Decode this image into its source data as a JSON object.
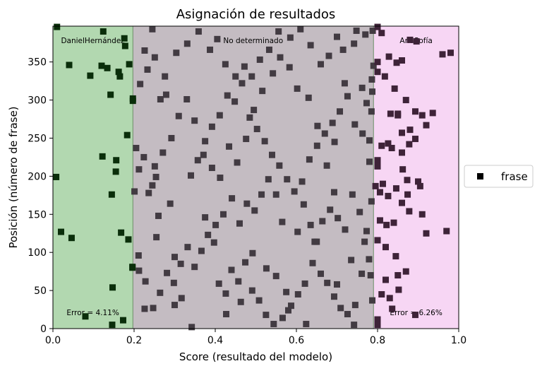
{
  "chart_data": {
    "type": "scatter",
    "title": "Asignación de resultados",
    "xlabel": "Score (resultado del modelo)",
    "ylabel": "Posición (número de frase)",
    "xlim": [
      0.0,
      1.0
    ],
    "ylim": [
      0,
      397
    ],
    "x_ticks": [
      "0.0",
      "0.2",
      "0.4",
      "0.6",
      "0.8",
      "1.0"
    ],
    "x_tick_values": [
      0.0,
      0.2,
      0.4,
      0.6,
      0.8,
      1.0
    ],
    "y_ticks": [
      "0",
      "50",
      "100",
      "150",
      "200",
      "250",
      "300",
      "350"
    ],
    "y_tick_values": [
      0,
      50,
      100,
      150,
      200,
      250,
      300,
      350
    ],
    "grid": false,
    "legend": {
      "placement": "right-outside",
      "label": "frase",
      "marker": "square",
      "color": "#000000"
    },
    "regions": [
      {
        "label": "DanielHernández",
        "x_start": 0.0,
        "x_end": 0.197,
        "color": "#b2d8b0",
        "error_label": "Error = 4.11%"
      },
      {
        "label": "No determinado",
        "x_start": 0.197,
        "x_end": 0.79,
        "color": "#c4bcc2",
        "error_label": ""
      },
      {
        "label": "AnaSofía",
        "x_start": 0.79,
        "x_end": 1.0,
        "color": "#f7d6f4",
        "error_label": "Error = 6.26%"
      }
    ],
    "marker_colors": {
      "DanielHernández": "#0a2e0a",
      "No determinado": "#423b42",
      "AnaSofía": "#3e2338"
    },
    "points": [
      [
        0.01,
        396
      ],
      [
        0.008,
        199
      ],
      [
        0.02,
        127
      ],
      [
        0.046,
        119
      ],
      [
        0.08,
        16
      ],
      [
        0.146,
        5
      ],
      [
        0.147,
        54
      ],
      [
        0.173,
        11
      ],
      [
        0.168,
        126
      ],
      [
        0.186,
        117
      ],
      [
        0.155,
        206
      ],
      [
        0.156,
        221
      ],
      [
        0.122,
        226
      ],
      [
        0.145,
        176
      ],
      [
        0.183,
        254
      ],
      [
        0.197,
        299
      ],
      [
        0.197,
        302
      ],
      [
        0.188,
        347
      ],
      [
        0.142,
        307
      ],
      [
        0.12,
        345
      ],
      [
        0.134,
        342
      ],
      [
        0.162,
        337
      ],
      [
        0.165,
        331
      ],
      [
        0.092,
        332
      ],
      [
        0.04,
        346
      ],
      [
        0.178,
        371
      ],
      [
        0.176,
        381
      ],
      [
        0.124,
        390
      ],
      [
        0.196,
        80
      ],
      [
        0.196,
        81
      ],
      [
        0.211,
        96
      ],
      [
        0.233,
        340
      ],
      [
        0.245,
        393
      ],
      [
        0.265,
        301
      ],
      [
        0.279,
        307
      ],
      [
        0.251,
        213
      ],
      [
        0.289,
        164
      ],
      [
        0.26,
        148
      ],
      [
        0.3,
        94
      ],
      [
        0.317,
        40
      ],
      [
        0.255,
        120
      ],
      [
        0.226,
        26
      ],
      [
        0.3,
        31
      ],
      [
        0.342,
        2
      ],
      [
        0.375,
        146
      ],
      [
        0.397,
        113
      ],
      [
        0.427,
        19
      ],
      [
        0.463,
        35
      ],
      [
        0.492,
        99
      ],
      [
        0.526,
        79
      ],
      [
        0.55,
        69
      ],
      [
        0.575,
        48
      ],
      [
        0.58,
        24
      ],
      [
        0.603,
        127
      ],
      [
        0.624,
        6
      ],
      [
        0.65,
        114
      ],
      [
        0.693,
        179
      ],
      [
        0.7,
        58
      ],
      [
        0.735,
        90
      ],
      [
        0.745,
        31
      ],
      [
        0.761,
        72
      ],
      [
        0.773,
        128
      ],
      [
        0.785,
        167
      ],
      [
        0.78,
        219
      ],
      [
        0.773,
        296
      ],
      [
        0.762,
        316
      ],
      [
        0.742,
        374
      ],
      [
        0.719,
        322
      ],
      [
        0.694,
        245
      ],
      [
        0.675,
        214
      ],
      [
        0.652,
        266
      ],
      [
        0.63,
        303
      ],
      [
        0.602,
        315
      ],
      [
        0.583,
        343
      ],
      [
        0.56,
        356
      ],
      [
        0.542,
        335
      ],
      [
        0.516,
        312
      ],
      [
        0.495,
        287
      ],
      [
        0.476,
        249
      ],
      [
        0.454,
        218
      ],
      [
        0.434,
        239
      ],
      [
        0.412,
        198
      ],
      [
        0.392,
        211
      ],
      [
        0.371,
        228
      ],
      [
        0.349,
        273
      ],
      [
        0.33,
        301
      ],
      [
        0.31,
        279
      ],
      [
        0.292,
        250
      ],
      [
        0.271,
        231
      ],
      [
        0.254,
        199
      ],
      [
        0.245,
        188
      ],
      [
        0.236,
        178
      ],
      [
        0.224,
        225
      ],
      [
        0.212,
        209
      ],
      [
        0.205,
        237
      ],
      [
        0.201,
        180
      ],
      [
        0.215,
        321
      ],
      [
        0.226,
        365
      ],
      [
        0.251,
        356
      ],
      [
        0.276,
        331
      ],
      [
        0.304,
        362
      ],
      [
        0.331,
        374
      ],
      [
        0.359,
        390
      ],
      [
        0.387,
        366
      ],
      [
        0.405,
        380
      ],
      [
        0.425,
        347
      ],
      [
        0.45,
        331
      ],
      [
        0.472,
        344
      ],
      [
        0.49,
        331
      ],
      [
        0.51,
        353
      ],
      [
        0.533,
        366
      ],
      [
        0.556,
        390
      ],
      [
        0.585,
        382
      ],
      [
        0.61,
        393
      ],
      [
        0.635,
        372
      ],
      [
        0.66,
        347
      ],
      [
        0.68,
        358
      ],
      [
        0.7,
        383
      ],
      [
        0.715,
        366
      ],
      [
        0.748,
        391
      ],
      [
        0.77,
        386
      ],
      [
        0.788,
        391
      ],
      [
        0.618,
        163
      ],
      [
        0.635,
        136
      ],
      [
        0.645,
        114
      ],
      [
        0.664,
        141
      ],
      [
        0.683,
        156
      ],
      [
        0.702,
        145
      ],
      [
        0.72,
        130
      ],
      [
        0.738,
        176
      ],
      [
        0.756,
        153
      ],
      [
        0.768,
        114
      ],
      [
        0.779,
        91
      ],
      [
        0.783,
        70
      ],
      [
        0.787,
        37
      ],
      [
        0.565,
        140
      ],
      [
        0.55,
        176
      ],
      [
        0.531,
        196
      ],
      [
        0.514,
        176
      ],
      [
        0.497,
        155
      ],
      [
        0.478,
        164
      ],
      [
        0.46,
        138
      ],
      [
        0.441,
        171
      ],
      [
        0.42,
        150
      ],
      [
        0.401,
        136
      ],
      [
        0.382,
        123
      ],
      [
        0.366,
        102
      ],
      [
        0.349,
        81
      ],
      [
        0.332,
        107
      ],
      [
        0.315,
        85
      ],
      [
        0.298,
        60
      ],
      [
        0.281,
        73
      ],
      [
        0.264,
        47
      ],
      [
        0.247,
        27
      ],
      [
        0.228,
        62
      ],
      [
        0.212,
        76
      ],
      [
        0.409,
        59
      ],
      [
        0.426,
        46
      ],
      [
        0.44,
        77
      ],
      [
        0.457,
        62
      ],
      [
        0.474,
        87
      ],
      [
        0.491,
        50
      ],
      [
        0.508,
        37
      ],
      [
        0.525,
        18
      ],
      [
        0.544,
        6
      ],
      [
        0.566,
        14
      ],
      [
        0.587,
        30
      ],
      [
        0.604,
        45
      ],
      [
        0.621,
        59
      ],
      [
        0.64,
        86
      ],
      [
        0.66,
        72
      ],
      [
        0.676,
        60
      ],
      [
        0.693,
        42
      ],
      [
        0.709,
        27
      ],
      [
        0.726,
        19
      ],
      [
        0.742,
        5
      ],
      [
        0.34,
        201
      ],
      [
        0.357,
        221
      ],
      [
        0.375,
        246
      ],
      [
        0.392,
        265
      ],
      [
        0.411,
        280
      ],
      [
        0.43,
        306
      ],
      [
        0.448,
        298
      ],
      [
        0.466,
        322
      ],
      [
        0.485,
        277
      ],
      [
        0.503,
        262
      ],
      [
        0.522,
        246
      ],
      [
        0.54,
        228
      ],
      [
        0.558,
        214
      ],
      [
        0.577,
        196
      ],
      [
        0.595,
        180
      ],
      [
        0.614,
        193
      ],
      [
        0.632,
        222
      ],
      [
        0.651,
        240
      ],
      [
        0.67,
        256
      ],
      [
        0.689,
        270
      ],
      [
        0.707,
        285
      ],
      [
        0.726,
        305
      ],
      [
        0.744,
        268
      ],
      [
        0.763,
        256
      ],
      [
        0.78,
        247
      ],
      [
        0.785,
        285
      ],
      [
        0.787,
        311
      ],
      [
        0.786,
        327
      ],
      [
        0.79,
        345
      ],
      [
        0.8,
        396
      ],
      [
        0.81,
        388
      ],
      [
        0.828,
        357
      ],
      [
        0.847,
        349
      ],
      [
        0.86,
        352
      ],
      [
        0.88,
        379
      ],
      [
        0.896,
        377
      ],
      [
        0.98,
        362
      ],
      [
        0.96,
        360
      ],
      [
        0.8,
        337
      ],
      [
        0.818,
        331
      ],
      [
        0.842,
        315
      ],
      [
        0.87,
        300
      ],
      [
        0.893,
        285
      ],
      [
        0.91,
        280
      ],
      [
        0.936,
        283
      ],
      [
        0.92,
        267
      ],
      [
        0.88,
        261
      ],
      [
        0.85,
        280
      ],
      [
        0.832,
        282
      ],
      [
        0.826,
        243
      ],
      [
        0.81,
        240
      ],
      [
        0.835,
        237
      ],
      [
        0.86,
        257
      ],
      [
        0.878,
        242
      ],
      [
        0.893,
        249
      ],
      [
        0.86,
        231
      ],
      [
        0.8,
        221
      ],
      [
        0.8,
        213
      ],
      [
        0.795,
        187
      ],
      [
        0.813,
        190
      ],
      [
        0.806,
        179
      ],
      [
        0.826,
        174
      ],
      [
        0.846,
        184
      ],
      [
        0.873,
        195
      ],
      [
        0.862,
        209
      ],
      [
        0.874,
        176
      ],
      [
        0.9,
        193
      ],
      [
        0.905,
        187
      ],
      [
        0.86,
        165
      ],
      [
        0.878,
        154
      ],
      [
        0.91,
        150
      ],
      [
        0.84,
        139
      ],
      [
        0.822,
        136
      ],
      [
        0.806,
        142
      ],
      [
        0.8,
        116
      ],
      [
        0.82,
        107
      ],
      [
        0.845,
        95
      ],
      [
        0.87,
        75
      ],
      [
        0.85,
        70
      ],
      [
        0.82,
        64
      ],
      [
        0.81,
        45
      ],
      [
        0.836,
        26
      ],
      [
        0.8,
        12
      ],
      [
        0.8,
        5
      ],
      [
        0.83,
        40
      ],
      [
        0.852,
        51
      ],
      [
        0.893,
        18
      ],
      [
        0.92,
        125
      ],
      [
        0.97,
        128
      ],
      [
        0.8,
        350
      ],
      [
        0.85,
        282
      ]
    ]
  }
}
